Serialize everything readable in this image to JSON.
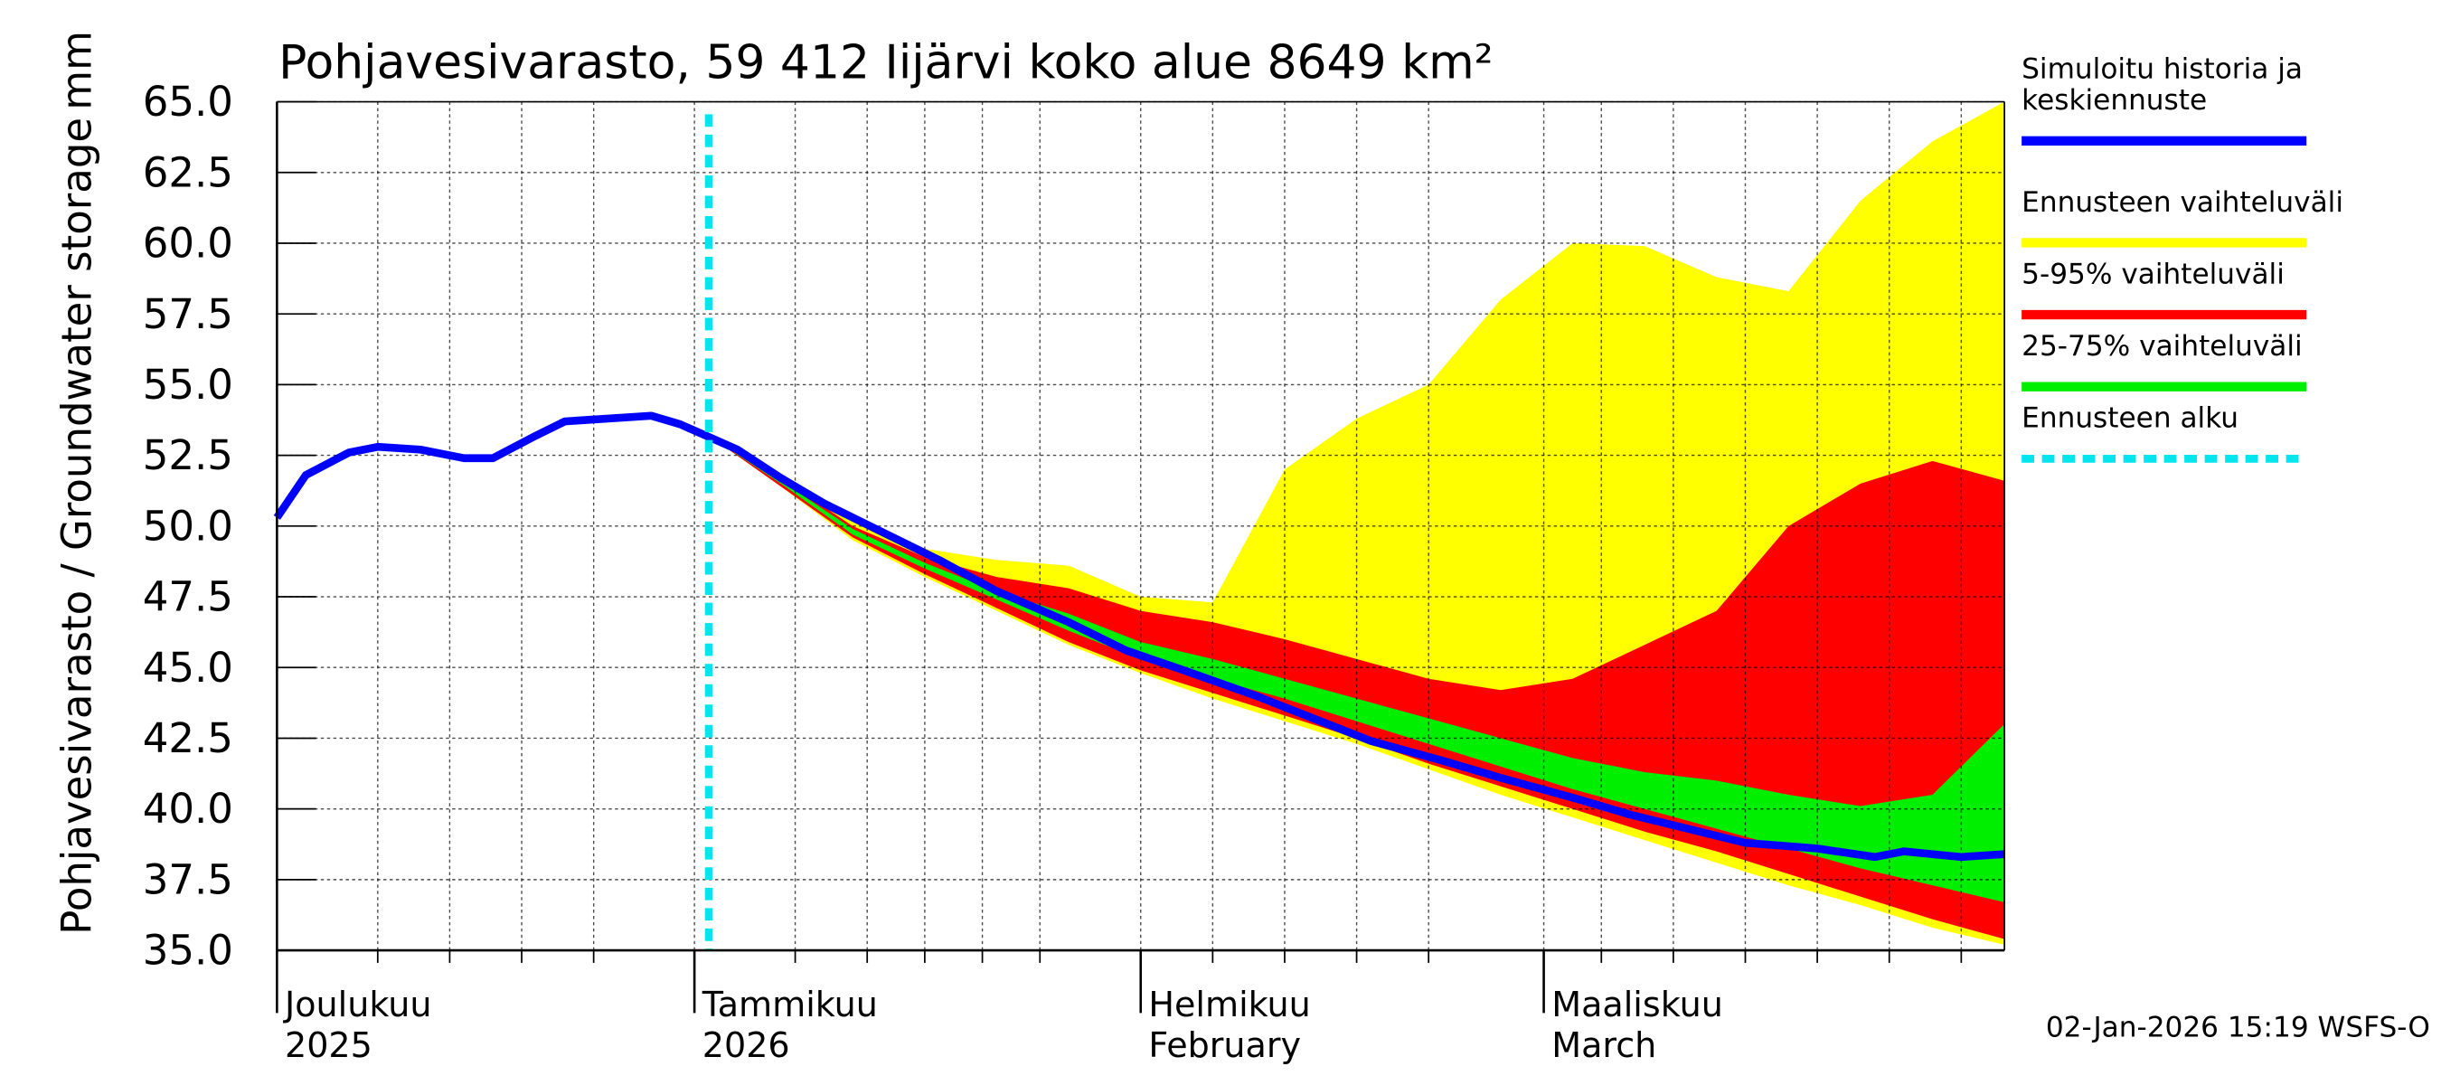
{
  "chart_data": {
    "type": "band-forecast",
    "title": "Pohjavesivarasto, 59 412 Iijärvi koko alue 8649 km²",
    "ylabel": "Pohjavesivarasto / Groundwater storage",
    "yunit": "mm",
    "footer": "02-Jan-2026 15:19 WSFS-O",
    "xlim": [
      0,
      120
    ],
    "xticks": [
      {
        "value": 0,
        "label": [
          "Joulukuu",
          "2025"
        ]
      },
      {
        "value": 29,
        "label": [
          "Tammikuu",
          "2026"
        ]
      },
      {
        "value": 60,
        "label": [
          "Helmikuu",
          "February"
        ]
      },
      {
        "value": 88,
        "label": [
          "Maaliskuu",
          "March"
        ]
      }
    ],
    "xgrid": [
      7,
      12,
      17,
      22,
      36,
      41,
      45,
      49,
      53,
      65,
      70,
      75,
      80,
      92,
      97,
      102,
      107,
      112,
      117
    ],
    "ylim": [
      35,
      65
    ],
    "yticks": [
      {
        "value": 35,
        "label": "35.0"
      },
      {
        "value": 37.5,
        "label": "37.5"
      },
      {
        "value": 40,
        "label": "40.0"
      },
      {
        "value": 42.5,
        "label": "42.5"
      },
      {
        "value": 45,
        "label": "45.0"
      },
      {
        "value": 47.5,
        "label": "47.5"
      },
      {
        "value": 50,
        "label": "50.0"
      },
      {
        "value": 52.5,
        "label": "52.5"
      },
      {
        "value": 55,
        "label": "55.0"
      },
      {
        "value": 57.5,
        "label": "57.5"
      },
      {
        "value": 60,
        "label": "60.0"
      },
      {
        "value": 62.5,
        "label": "62.5"
      },
      {
        "value": 65,
        "label": "65.0"
      }
    ],
    "grid": true,
    "band_x": [
      30,
      35,
      40,
      45,
      50,
      55,
      60,
      65,
      70,
      75,
      80,
      85,
      90,
      95,
      100,
      105,
      110,
      115,
      120
    ],
    "bands": [
      {
        "name": "Ennusteen vaihteluväli",
        "color": "#ffff00",
        "upper": [
          53.2,
          51.8,
          50.3,
          49.2,
          48.8,
          48.6,
          47.5,
          47.3,
          52.0,
          53.8,
          55.0,
          58.0,
          60.0,
          59.9,
          58.8,
          58.3,
          61.5,
          63.6,
          65.0
        ],
        "lower": [
          53.2,
          51.4,
          49.5,
          48.2,
          47.0,
          45.8,
          44.8,
          43.9,
          43.1,
          42.3,
          41.4,
          40.5,
          39.7,
          38.9,
          38.1,
          37.3,
          36.6,
          35.8,
          35.2
        ]
      },
      {
        "name": "5-95% vaihteluväli",
        "color": "#ff0000",
        "upper": [
          53.2,
          51.7,
          50.0,
          48.9,
          48.2,
          47.8,
          47.0,
          46.6,
          46.0,
          45.3,
          44.6,
          44.2,
          44.6,
          45.8,
          47.0,
          50.0,
          51.5,
          52.3,
          51.6
        ],
        "lower": [
          53.2,
          51.4,
          49.6,
          48.3,
          47.1,
          45.9,
          44.9,
          44.1,
          43.3,
          42.5,
          41.6,
          40.8,
          40.0,
          39.2,
          38.5,
          37.7,
          36.9,
          36.1,
          35.4
        ]
      },
      {
        "name": "25-75% vaihteluväli",
        "color": "#00ee00",
        "upper": [
          53.2,
          51.6,
          49.9,
          48.7,
          47.7,
          46.9,
          45.9,
          45.3,
          44.6,
          43.9,
          43.2,
          42.5,
          41.8,
          41.3,
          41.0,
          40.5,
          40.1,
          40.5,
          43.0
        ],
        "lower": [
          53.2,
          51.5,
          49.7,
          48.5,
          47.4,
          46.3,
          45.3,
          44.6,
          43.9,
          43.1,
          42.3,
          41.5,
          40.7,
          40.0,
          39.3,
          38.6,
          37.9,
          37.3,
          36.7
        ]
      }
    ],
    "series": [
      {
        "name": [
          "Simuloitu historia ja",
          "keskiennuste"
        ],
        "color": "#0000ff",
        "x": [
          0,
          2,
          5,
          7,
          10,
          12,
          13,
          15,
          18,
          20,
          23,
          26,
          28,
          32,
          35,
          38,
          42,
          46,
          50,
          55,
          59,
          63,
          68,
          72,
          76,
          81,
          85,
          90,
          94,
          98,
          102,
          107,
          111,
          113,
          117,
          120
        ],
        "values": [
          50.3,
          51.8,
          52.6,
          52.8,
          52.7,
          52.5,
          52.4,
          52.4,
          53.2,
          53.7,
          53.8,
          53.9,
          53.6,
          52.7,
          51.7,
          50.8,
          49.8,
          48.8,
          47.7,
          46.6,
          45.6,
          44.9,
          44.0,
          43.2,
          42.4,
          41.7,
          41.1,
          40.4,
          39.8,
          39.3,
          38.8,
          38.6,
          38.3,
          38.5,
          38.3,
          38.4
        ]
      }
    ],
    "forecast_start": {
      "name": "Ennusteen alku",
      "color": "#00e5ee",
      "x": 30
    }
  }
}
